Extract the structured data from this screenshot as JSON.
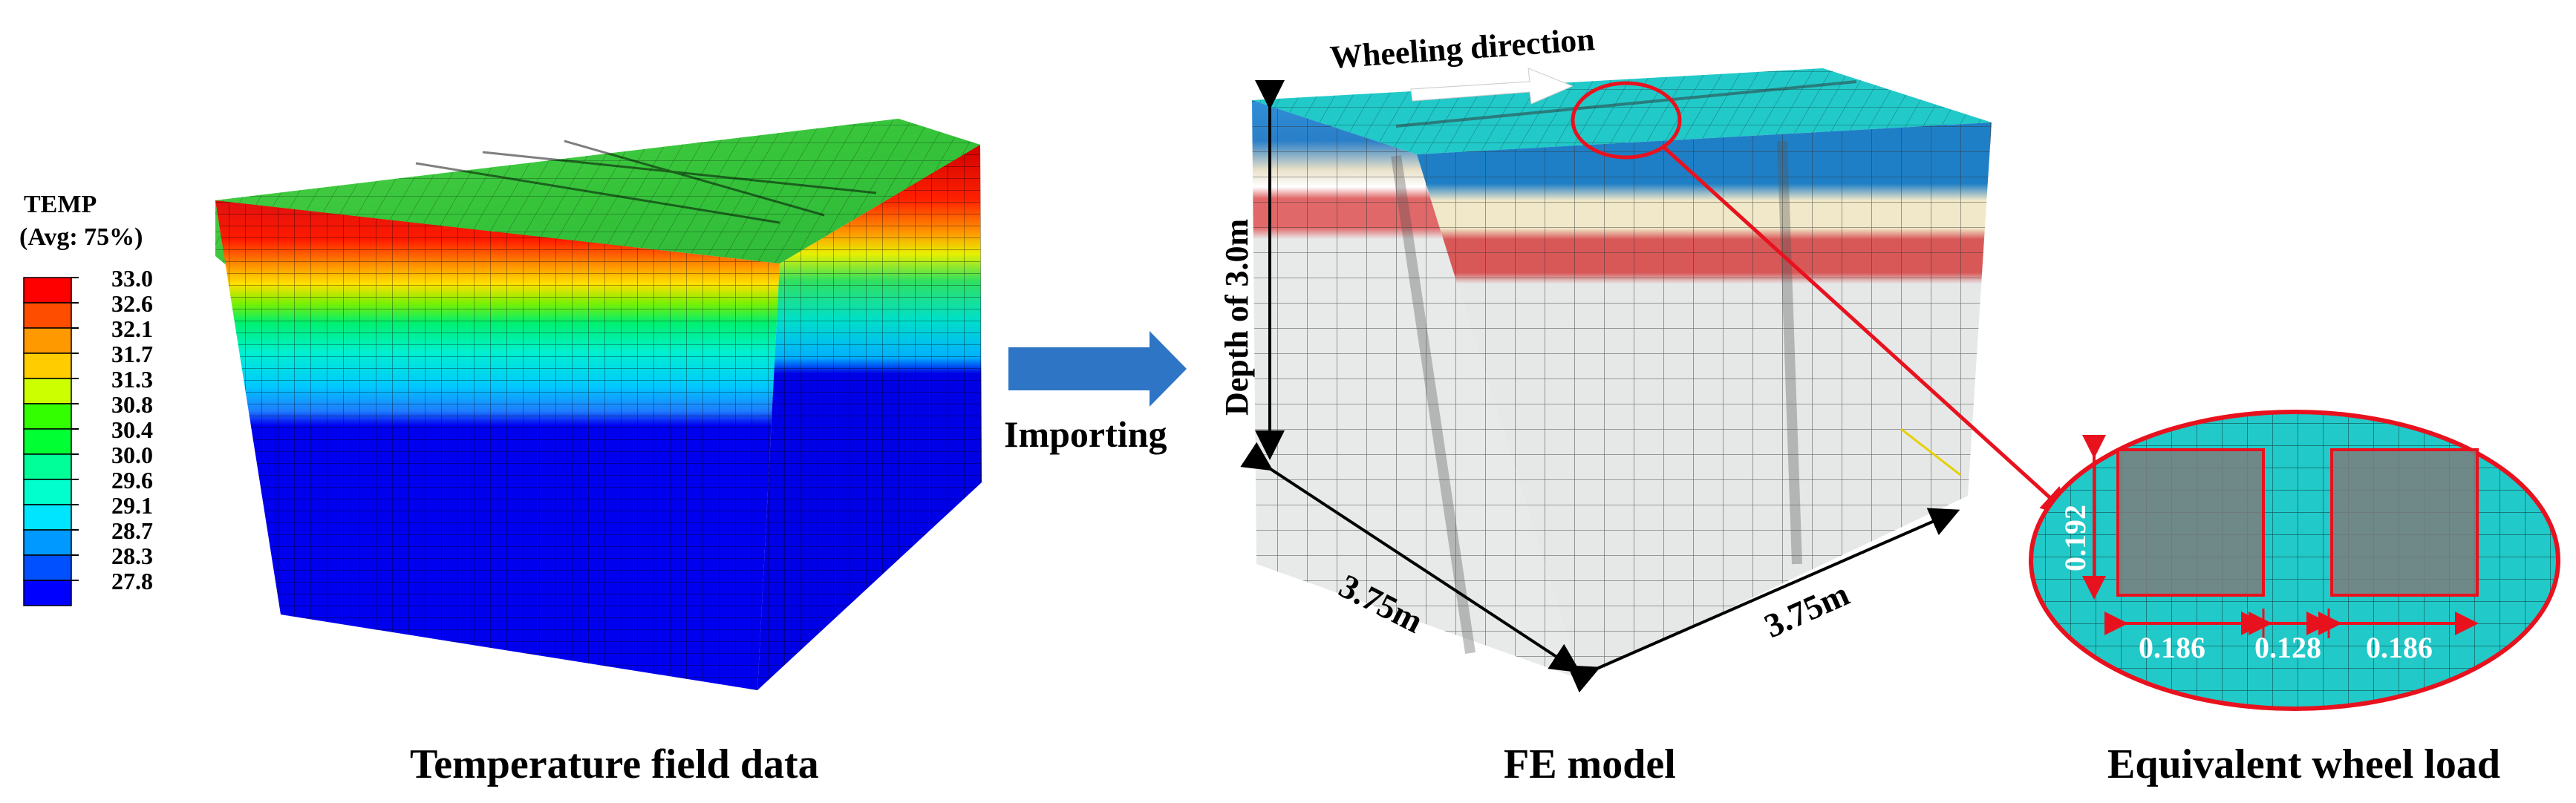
{
  "legend": {
    "title_line1": "TEMP",
    "title_line2": "(Avg: 75%)",
    "levels": [
      "33.0",
      "32.6",
      "32.1",
      "31.7",
      "31.3",
      "30.8",
      "30.4",
      "30.0",
      "29.6",
      "29.1",
      "28.7",
      "28.3",
      "27.8"
    ],
    "colors": [
      "#ff0000",
      "#ff4d00",
      "#ff9900",
      "#ffcc00",
      "#ccff00",
      "#33ff00",
      "#00ff33",
      "#00ff99",
      "#00ffcc",
      "#00e5ff",
      "#0099ff",
      "#0050ff",
      "#0000ff"
    ]
  },
  "panels": {
    "left_caption": "Temperature field data",
    "middle_caption": "FE model",
    "right_caption": "Equivalent wheel load"
  },
  "import_arrow": {
    "label": "Importing",
    "color": "#2e75c6"
  },
  "fe_model": {
    "wheeling_direction": "Wheeling direction",
    "depth_label": "Depth of 3.0m",
    "width_left": "3.75m",
    "width_right": "3.75m"
  },
  "wheel_load": {
    "height": "0.192",
    "width1": "0.186",
    "gap": "0.128",
    "width2": "0.186"
  },
  "colors": {
    "accent_red": "#e8121e",
    "mesh_cyan": "#22c9c9",
    "patch_gray": "#7d7d7d"
  }
}
